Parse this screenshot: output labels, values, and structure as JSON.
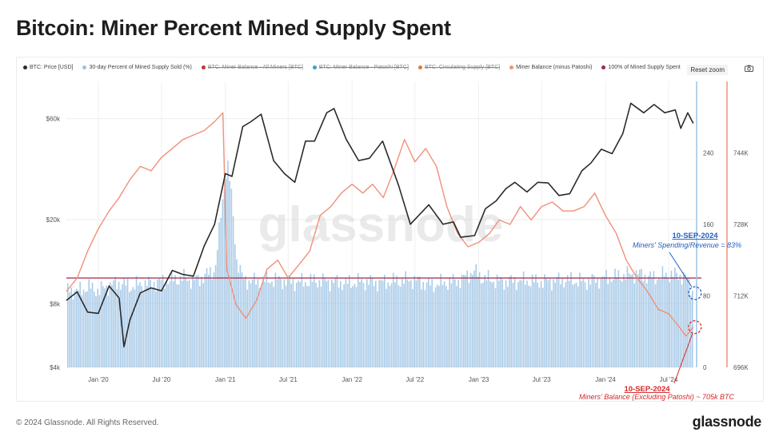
{
  "page": {
    "title": "Bitcoin: Miner Percent Mined Supply Spent",
    "copyright": "© 2024 Glassnode. All Rights Reserved.",
    "logo": "glassnode"
  },
  "toolbar": {
    "reset_zoom": "Reset zoom",
    "camera_icon": "camera-icon"
  },
  "legend": [
    {
      "label": "BTC: Price [USD]",
      "color": "#2b2b2b",
      "struck": false
    },
    {
      "label": "30-day Percent of Mined Supply Sold (%)",
      "color": "#9cc3e4",
      "struck": false
    },
    {
      "label": "BTC: Miner Balance - All Miners [BTC]",
      "color": "#c0392b",
      "struck": true
    },
    {
      "label": "BTC: Miner Balance - Patoshi [BTC]",
      "color": "#3aa0c8",
      "struck": true
    },
    {
      "label": "BTC: Circulating Supply [BTC]",
      "color": "#e07b3a",
      "struck": true
    },
    {
      "label": "Miner Balance (minus Patoshi)",
      "color": "#f0907a",
      "struck": false
    },
    {
      "label": "100% of Mined Supply Spent",
      "color": "#9b2b4a",
      "struck": false
    }
  ],
  "annotations": {
    "spending_date": "10-SEP-2024",
    "spending_text": "Miners' Spending/Revenue = 83%",
    "balance_date": "10-SEP-2024",
    "balance_text": "Miners' Balance (Excluding Patoshi) ~ 705k BTC",
    "spending_color": "#1f5fbf",
    "balance_color": "#d62828"
  },
  "watermark": "glassnode",
  "chart_data": {
    "type": "line",
    "x_labels": [
      "Jan '20",
      "Jul '20",
      "Jan '21",
      "Jul '21",
      "Jan '22",
      "Jul '22",
      "Jan '23",
      "Jul '23",
      "Jan '24",
      "Jul '24"
    ],
    "x_range": [
      "2019-10-01",
      "2024-09-15"
    ],
    "axes": {
      "price": {
        "ticks": [
          "$4k",
          "$8k",
          "$20k",
          "$60k"
        ],
        "scale": "log",
        "range": [
          4000,
          90000
        ]
      },
      "percent": {
        "ticks": [
          "0",
          "80",
          "160",
          "240"
        ],
        "range": [
          0,
          320
        ]
      },
      "balance": {
        "ticks": [
          "696K",
          "712K",
          "728K",
          "744K"
        ],
        "range": [
          696000,
          760000
        ]
      }
    },
    "threshold": {
      "name": "100% of Mined Supply Spent",
      "value": 100,
      "axis": "percent"
    },
    "series": [
      {
        "name": "BTC: Price [USD]",
        "axis": "price",
        "color": "#2b2b2b",
        "points": [
          [
            "2019-10-01",
            8300
          ],
          [
            "2019-11-01",
            9100
          ],
          [
            "2019-12-01",
            7300
          ],
          [
            "2020-01-01",
            7200
          ],
          [
            "2020-02-01",
            9700
          ],
          [
            "2020-03-01",
            8500
          ],
          [
            "2020-03-15",
            5000
          ],
          [
            "2020-04-01",
            6700
          ],
          [
            "2020-05-01",
            9000
          ],
          [
            "2020-06-01",
            9500
          ],
          [
            "2020-07-01",
            9200
          ],
          [
            "2020-08-01",
            11500
          ],
          [
            "2020-09-01",
            11000
          ],
          [
            "2020-10-01",
            10800
          ],
          [
            "2020-11-01",
            15000
          ],
          [
            "2020-12-01",
            19000
          ],
          [
            "2021-01-01",
            33000
          ],
          [
            "2021-01-20",
            32000
          ],
          [
            "2021-02-20",
            55000
          ],
          [
            "2021-03-15",
            58000
          ],
          [
            "2021-04-14",
            63000
          ],
          [
            "2021-05-20",
            38000
          ],
          [
            "2021-06-20",
            33000
          ],
          [
            "2021-07-20",
            30000
          ],
          [
            "2021-08-20",
            47000
          ],
          [
            "2021-09-15",
            47000
          ],
          [
            "2021-10-20",
            64000
          ],
          [
            "2021-11-10",
            67000
          ],
          [
            "2021-12-15",
            48000
          ],
          [
            "2022-01-20",
            38000
          ],
          [
            "2022-02-20",
            39000
          ],
          [
            "2022-03-30",
            47000
          ],
          [
            "2022-05-15",
            29000
          ],
          [
            "2022-06-18",
            19000
          ],
          [
            "2022-08-10",
            23500
          ],
          [
            "2022-09-20",
            19000
          ],
          [
            "2022-10-20",
            19500
          ],
          [
            "2022-11-10",
            16500
          ],
          [
            "2022-12-20",
            16800
          ],
          [
            "2023-01-20",
            22500
          ],
          [
            "2023-02-20",
            24500
          ],
          [
            "2023-03-20",
            28000
          ],
          [
            "2023-04-15",
            30000
          ],
          [
            "2023-05-20",
            27000
          ],
          [
            "2023-06-20",
            30000
          ],
          [
            "2023-07-20",
            29800
          ],
          [
            "2023-08-20",
            26000
          ],
          [
            "2023-09-20",
            26500
          ],
          [
            "2023-10-25",
            34000
          ],
          [
            "2023-11-20",
            37000
          ],
          [
            "2023-12-20",
            43000
          ],
          [
            "2024-01-20",
            41000
          ],
          [
            "2024-02-20",
            51000
          ],
          [
            "2024-03-14",
            71000
          ],
          [
            "2024-04-20",
            64000
          ],
          [
            "2024-05-20",
            70000
          ],
          [
            "2024-06-20",
            64000
          ],
          [
            "2024-07-20",
            66000
          ],
          [
            "2024-08-05",
            54000
          ],
          [
            "2024-08-25",
            64000
          ],
          [
            "2024-09-10",
            57000
          ]
        ]
      },
      {
        "name": "30-day Percent of Mined Supply Sold (%)",
        "axis": "percent",
        "color": "#9cc3e4",
        "type": "area",
        "points": [
          [
            "2019-10-01",
            88
          ],
          [
            "2019-11-01",
            85
          ],
          [
            "2019-12-01",
            90
          ],
          [
            "2020-01-01",
            86
          ],
          [
            "2020-02-01",
            92
          ],
          [
            "2020-03-01",
            95
          ],
          [
            "2020-04-01",
            90
          ],
          [
            "2020-05-01",
            93
          ],
          [
            "2020-06-01",
            94
          ],
          [
            "2020-07-01",
            96
          ],
          [
            "2020-08-01",
            98
          ],
          [
            "2020-09-01",
            100
          ],
          [
            "2020-10-01",
            97
          ],
          [
            "2020-11-01",
            102
          ],
          [
            "2020-12-01",
            110
          ],
          [
            "2020-12-20",
            180
          ],
          [
            "2021-01-05",
            230
          ],
          [
            "2021-01-15",
            200
          ],
          [
            "2021-02-01",
            120
          ],
          [
            "2021-02-20",
            98
          ],
          [
            "2021-04-01",
            96
          ],
          [
            "2021-05-15",
            98
          ],
          [
            "2021-06-20",
            97
          ],
          [
            "2021-08-01",
            95
          ],
          [
            "2021-09-15",
            97
          ],
          [
            "2021-11-01",
            96
          ],
          [
            "2021-12-15",
            94
          ],
          [
            "2022-02-01",
            96
          ],
          [
            "2022-03-20",
            95
          ],
          [
            "2022-05-15",
            97
          ],
          [
            "2022-06-25",
            98
          ],
          [
            "2022-08-15",
            92
          ],
          [
            "2022-10-01",
            95
          ],
          [
            "2022-11-10",
            98
          ],
          [
            "2022-12-15",
            108
          ],
          [
            "2023-01-10",
            100
          ],
          [
            "2023-03-01",
            96
          ],
          [
            "2023-05-01",
            97
          ],
          [
            "2023-07-01",
            96
          ],
          [
            "2023-09-01",
            98
          ],
          [
            "2023-11-01",
            96
          ],
          [
            "2024-01-01",
            100
          ],
          [
            "2024-02-20",
            103
          ],
          [
            "2024-04-01",
            105
          ],
          [
            "2024-05-15",
            100
          ],
          [
            "2024-07-01",
            104
          ],
          [
            "2024-08-15",
            102
          ],
          [
            "2024-09-10",
            83
          ]
        ]
      },
      {
        "name": "Miner Balance (minus Patoshi)",
        "axis": "balance",
        "color": "#f0907a",
        "points": [
          [
            "2019-10-01",
            713000
          ],
          [
            "2019-11-01",
            716000
          ],
          [
            "2019-12-01",
            722000
          ],
          [
            "2020-01-01",
            727000
          ],
          [
            "2020-02-01",
            731000
          ],
          [
            "2020-03-01",
            734000
          ],
          [
            "2020-04-01",
            738000
          ],
          [
            "2020-05-01",
            741000
          ],
          [
            "2020-06-01",
            740000
          ],
          [
            "2020-07-01",
            743000
          ],
          [
            "2020-08-01",
            745000
          ],
          [
            "2020-09-01",
            747000
          ],
          [
            "2020-10-01",
            748000
          ],
          [
            "2020-11-01",
            749000
          ],
          [
            "2020-12-01",
            751000
          ],
          [
            "2020-12-25",
            753000
          ],
          [
            "2021-01-05",
            718000
          ],
          [
            "2021-02-01",
            710000
          ],
          [
            "2021-03-01",
            707000
          ],
          [
            "2021-04-01",
            711000
          ],
          [
            "2021-05-01",
            718000
          ],
          [
            "2021-06-01",
            720000
          ],
          [
            "2021-07-01",
            716000
          ],
          [
            "2021-08-01",
            719000
          ],
          [
            "2021-09-01",
            722000
          ],
          [
            "2021-10-01",
            730000
          ],
          [
            "2021-11-01",
            732000
          ],
          [
            "2021-12-01",
            735000
          ],
          [
            "2022-01-01",
            737000
          ],
          [
            "2022-02-01",
            735000
          ],
          [
            "2022-03-01",
            737000
          ],
          [
            "2022-04-01",
            734000
          ],
          [
            "2022-05-01",
            740000
          ],
          [
            "2022-06-01",
            747000
          ],
          [
            "2022-07-01",
            742000
          ],
          [
            "2022-08-01",
            745000
          ],
          [
            "2022-09-01",
            741000
          ],
          [
            "2022-10-01",
            732000
          ],
          [
            "2022-11-01",
            726000
          ],
          [
            "2022-12-01",
            723000
          ],
          [
            "2023-01-01",
            724000
          ],
          [
            "2023-02-01",
            726000
          ],
          [
            "2023-03-01",
            729000
          ],
          [
            "2023-04-01",
            728000
          ],
          [
            "2023-05-01",
            732000
          ],
          [
            "2023-06-01",
            729000
          ],
          [
            "2023-07-01",
            732000
          ],
          [
            "2023-08-01",
            733000
          ],
          [
            "2023-09-01",
            731000
          ],
          [
            "2023-10-01",
            731000
          ],
          [
            "2023-11-01",
            732000
          ],
          [
            "2023-12-01",
            735000
          ],
          [
            "2024-01-01",
            730000
          ],
          [
            "2024-02-01",
            726000
          ],
          [
            "2024-03-01",
            720000
          ],
          [
            "2024-04-01",
            716000
          ],
          [
            "2024-05-01",
            713000
          ],
          [
            "2024-06-01",
            709000
          ],
          [
            "2024-07-01",
            708000
          ],
          [
            "2024-08-01",
            705000
          ],
          [
            "2024-08-20",
            703000
          ],
          [
            "2024-09-10",
            705000
          ]
        ]
      }
    ]
  }
}
